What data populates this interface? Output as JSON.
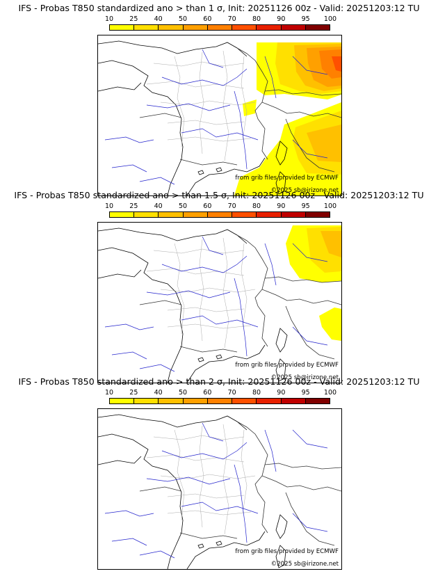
{
  "legend_ticks": [
    "10",
    "25",
    "40",
    "50",
    "60",
    "70",
    "80",
    "90",
    "95",
    "100"
  ],
  "legend_colors": [
    "#ffff00",
    "#ffe000",
    "#ffc000",
    "#ffa000",
    "#ff8000",
    "#ff5000",
    "#e82000",
    "#c00000",
    "#800000"
  ],
  "panels": [
    {
      "title": "IFS - Probas T850  standardized ano > than 1 σ, Init: 20251126 00z - Valid: 20251203:12 TU",
      "threshold_sigma": 1,
      "source_credit": "from grib files provided by ECMWF",
      "copyright": "©2025 sb@irizone.net"
    },
    {
      "title": "IFS - Probas T850  standardized ano > than 1.5 σ, Init: 20251126 00z - Valid: 20251203:12 TU",
      "threshold_sigma": 1.5,
      "source_credit": "from grib files provided by ECMWF",
      "copyright": "©2025 sb@irizone.net"
    },
    {
      "title": "IFS - Probas T850  standardized ano > than 2 σ, Init: 20251126 00z - Valid: 20251203:12 TU",
      "threshold_sigma": 2,
      "source_credit": "from grib files provided by ECMWF",
      "copyright": "©2025 sb@irizone.net"
    }
  ]
}
